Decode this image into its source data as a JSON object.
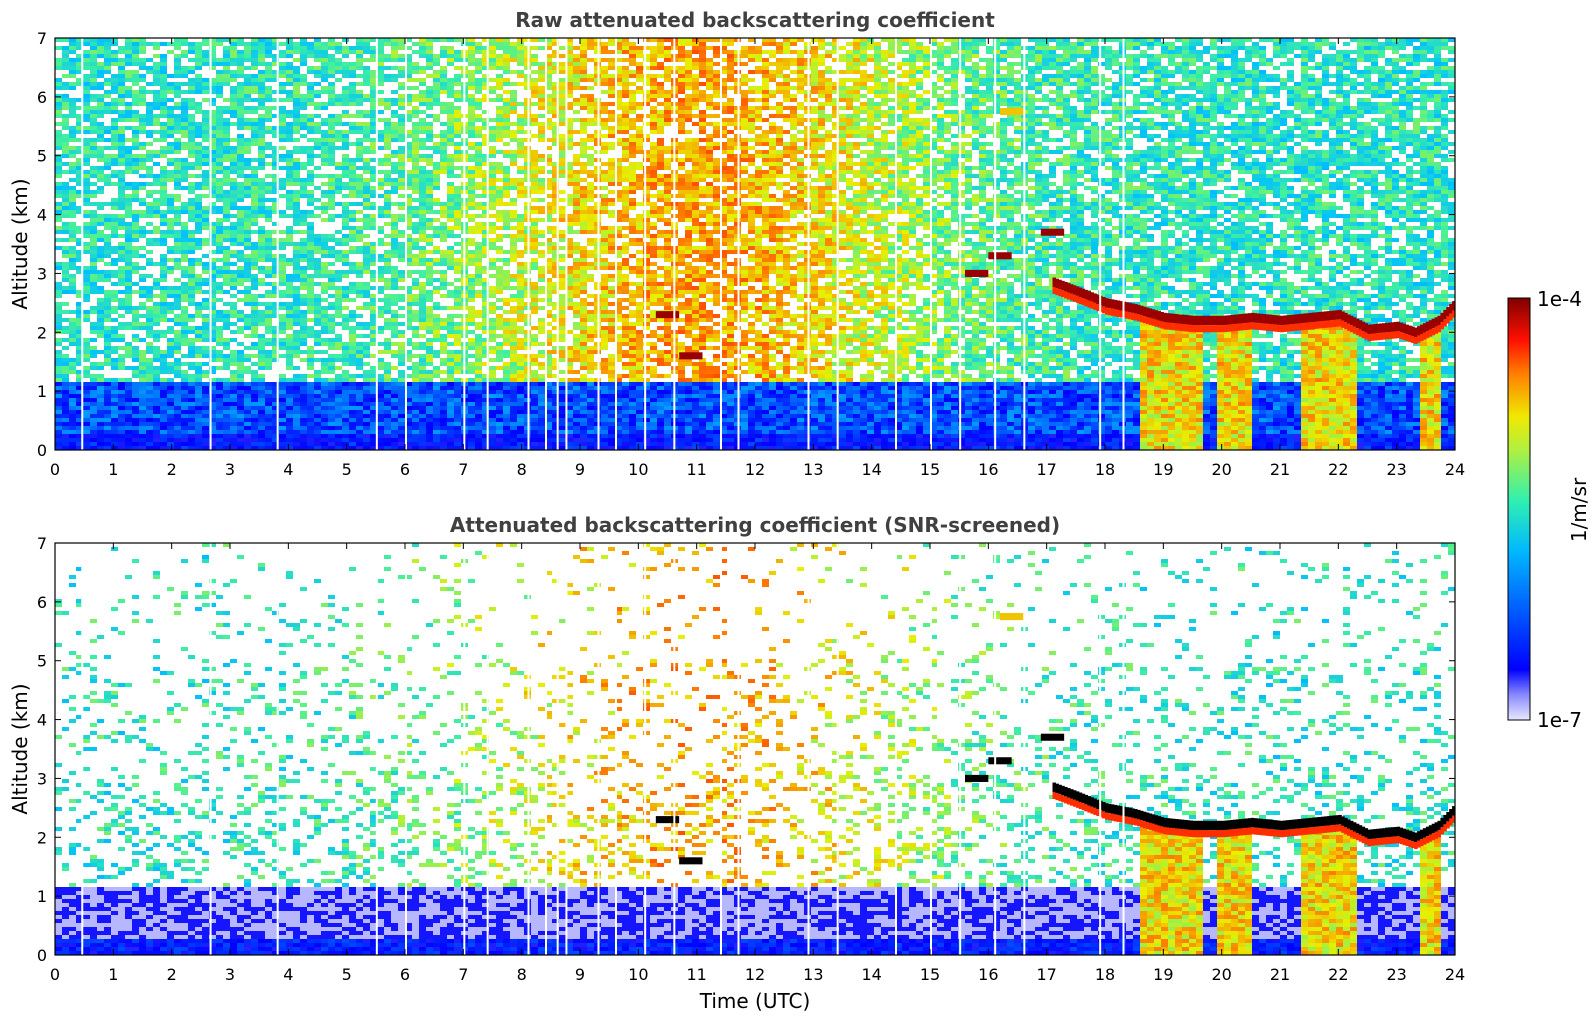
{
  "chart_data": [
    {
      "type": "heatmap",
      "title": "Raw attenuated backscattering coefficient",
      "xlabel": "",
      "ylabel": "Altitude (km)",
      "xlim": [
        0,
        24
      ],
      "ylim": [
        0,
        7
      ],
      "xticks": [
        "0",
        "1",
        "2",
        "3",
        "4",
        "5",
        "6",
        "7",
        "8",
        "9",
        "10",
        "11",
        "12",
        "13",
        "14",
        "15",
        "16",
        "17",
        "18",
        "19",
        "20",
        "21",
        "22",
        "23",
        "24"
      ],
      "yticks": [
        "0",
        "1",
        "2",
        "3",
        "4",
        "5",
        "6",
        "7"
      ],
      "features": {
        "surface_layer_top_km": 0.3,
        "cloud_layer": [
          [
            17.1,
            2.85
          ],
          [
            17.5,
            2.7
          ],
          [
            18.0,
            2.5
          ],
          [
            18.5,
            2.4
          ],
          [
            19.0,
            2.25
          ],
          [
            19.5,
            2.2
          ],
          [
            20.0,
            2.2
          ],
          [
            20.5,
            2.25
          ],
          [
            21.0,
            2.2
          ],
          [
            21.5,
            2.25
          ],
          [
            22.0,
            2.3
          ],
          [
            22.5,
            2.05
          ],
          [
            23.0,
            2.1
          ],
          [
            23.3,
            2.0
          ],
          [
            23.7,
            2.2
          ],
          [
            24.0,
            2.5
          ]
        ],
        "isolated_clouds": [
          [
            10.5,
            2.3
          ],
          [
            10.9,
            1.6
          ],
          [
            15.8,
            3.0
          ],
          [
            16.2,
            3.3
          ],
          [
            16.4,
            5.75
          ],
          [
            17.1,
            3.7
          ]
        ],
        "precipitation_fall_streaks_hours": [
          [
            18.6,
            19.6
          ],
          [
            19.8,
            20.4
          ],
          [
            21.3,
            22.3
          ],
          [
            23.3,
            23.7
          ]
        ],
        "data_gaps_hours": [
          0.45,
          2.65,
          3.8,
          5.5,
          6.0,
          7.0,
          7.4,
          8.1,
          8.4,
          8.6,
          8.75,
          9.3,
          9.6,
          10.1,
          10.6,
          11.4,
          11.7,
          12.9,
          13.4,
          14.4,
          15.0,
          15.5,
          16.1,
          16.6,
          17.9,
          18.3
        ]
      }
    },
    {
      "type": "heatmap",
      "title": "Attenuated backscattering coefficient (SNR-screened)",
      "xlabel": "Time (UTC)",
      "ylabel": "Altitude (km)",
      "xlim": [
        0,
        24
      ],
      "ylim": [
        0,
        7
      ],
      "xticks": [
        "0",
        "1",
        "2",
        "3",
        "4",
        "5",
        "6",
        "7",
        "8",
        "9",
        "10",
        "11",
        "12",
        "13",
        "14",
        "15",
        "16",
        "17",
        "18",
        "19",
        "20",
        "21",
        "22",
        "23",
        "24"
      ],
      "yticks": [
        "0",
        "1",
        "2",
        "3",
        "4",
        "5",
        "6",
        "7"
      ]
    }
  ],
  "colorbar": {
    "label": "1/m/sr",
    "max_label": "1e-4",
    "min_label": "1e-7",
    "scale": "log",
    "range": [
      1e-07,
      0.0001
    ],
    "colormap": [
      "#e8e8ff",
      "#0000ff",
      "#00c0ff",
      "#40f0a0",
      "#e8f000",
      "#ff7000",
      "#ff0000",
      "#800000"
    ]
  }
}
